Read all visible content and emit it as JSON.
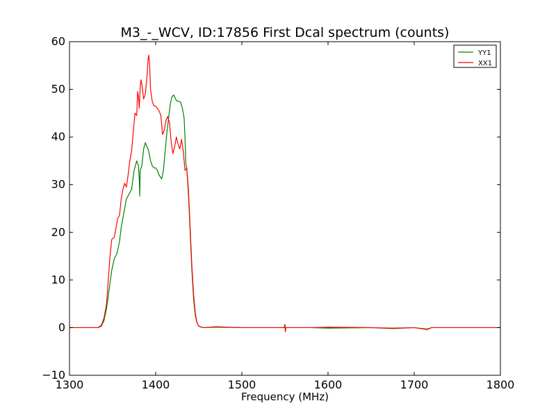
{
  "chart_data": {
    "type": "line",
    "title": "M3_-_WCV, ID:17856 First Dcal spectrum (counts)",
    "xlabel": "Frequency (MHz)",
    "ylabel": "",
    "xlim": [
      1300,
      1800
    ],
    "ylim": [
      -10,
      60
    ],
    "x_ticks": [
      1300,
      1400,
      1500,
      1600,
      1700,
      1800
    ],
    "y_ticks": [
      -10,
      0,
      10,
      20,
      30,
      40,
      50,
      60
    ],
    "x_tick_labels": [
      "1300",
      "1400",
      "1500",
      "1600",
      "1700",
      "1800"
    ],
    "y_tick_labels": [
      "−10",
      "0",
      "10",
      "20",
      "30",
      "40",
      "50",
      "60"
    ],
    "grid": false,
    "legend_position": "top-right",
    "series": [
      {
        "name": "YY1",
        "color": "#008000",
        "points": [
          [
            1300,
            0
          ],
          [
            1320,
            0
          ],
          [
            1333,
            0
          ],
          [
            1337,
            0.3
          ],
          [
            1340,
            1.5
          ],
          [
            1343,
            4
          ],
          [
            1346,
            8
          ],
          [
            1349,
            12
          ],
          [
            1352,
            14.5
          ],
          [
            1355,
            15.5
          ],
          [
            1358,
            18
          ],
          [
            1360,
            21
          ],
          [
            1363,
            24
          ],
          [
            1366,
            27
          ],
          [
            1369,
            28
          ],
          [
            1372,
            29
          ],
          [
            1375,
            33
          ],
          [
            1378,
            35
          ],
          [
            1380,
            34
          ],
          [
            1381,
            31
          ],
          [
            1381.5,
            27.6
          ],
          [
            1382,
            33
          ],
          [
            1384,
            34
          ],
          [
            1386,
            37.5
          ],
          [
            1388,
            38.8
          ],
          [
            1390,
            38
          ],
          [
            1392,
            37
          ],
          [
            1394,
            35
          ],
          [
            1396,
            34
          ],
          [
            1398,
            33.5
          ],
          [
            1400,
            33.5
          ],
          [
            1402,
            33
          ],
          [
            1404,
            32
          ],
          [
            1406,
            31.5
          ],
          [
            1407,
            31.2
          ],
          [
            1409,
            33
          ],
          [
            1411,
            37
          ],
          [
            1413,
            41
          ],
          [
            1415,
            44
          ],
          [
            1417,
            47
          ],
          [
            1419,
            48.5
          ],
          [
            1421,
            48.8
          ],
          [
            1423,
            48
          ],
          [
            1425,
            47.5
          ],
          [
            1427,
            47.5
          ],
          [
            1429,
            47.3
          ],
          [
            1431,
            46
          ],
          [
            1433,
            44
          ],
          [
            1434,
            40
          ],
          [
            1435,
            34.3
          ],
          [
            1436,
            33.5
          ],
          [
            1438,
            28
          ],
          [
            1440,
            20
          ],
          [
            1442,
            12
          ],
          [
            1444,
            6
          ],
          [
            1446,
            2.5
          ],
          [
            1448,
            1
          ],
          [
            1450,
            0.3
          ],
          [
            1455,
            0
          ],
          [
            1470,
            0.1
          ],
          [
            1500,
            0
          ],
          [
            1549,
            0
          ],
          [
            1550,
            0.7
          ],
          [
            1550.5,
            -0.6
          ],
          [
            1551,
            0
          ],
          [
            1580,
            0
          ],
          [
            1600,
            -0.1
          ],
          [
            1650,
            0
          ],
          [
            1675,
            -0.2
          ],
          [
            1700,
            0
          ],
          [
            1715,
            -0.3
          ],
          [
            1720,
            0
          ],
          [
            1800,
            0
          ]
        ]
      },
      {
        "name": "XX1",
        "color": "#ff0000",
        "points": [
          [
            1300,
            0
          ],
          [
            1320,
            0
          ],
          [
            1333,
            0
          ],
          [
            1337,
            0.5
          ],
          [
            1340,
            2
          ],
          [
            1343,
            5
          ],
          [
            1345,
            10
          ],
          [
            1347,
            15
          ],
          [
            1349,
            18.5
          ],
          [
            1352,
            19
          ],
          [
            1354,
            21
          ],
          [
            1356,
            23
          ],
          [
            1358,
            23.5
          ],
          [
            1360,
            27
          ],
          [
            1362,
            29
          ],
          [
            1364,
            30.3
          ],
          [
            1366,
            29.5
          ],
          [
            1368,
            32
          ],
          [
            1370,
            35
          ],
          [
            1372,
            37
          ],
          [
            1374,
            41
          ],
          [
            1376,
            45
          ],
          [
            1378,
            44.5
          ],
          [
            1379,
            49.5
          ],
          [
            1380,
            48.5
          ],
          [
            1381,
            46
          ],
          [
            1382,
            50.5
          ],
          [
            1383,
            52
          ],
          [
            1384,
            51
          ],
          [
            1386,
            48
          ],
          [
            1388,
            49
          ],
          [
            1390,
            53
          ],
          [
            1391,
            56
          ],
          [
            1392,
            57.2
          ],
          [
            1393,
            55
          ],
          [
            1394,
            50
          ],
          [
            1396,
            47.5
          ],
          [
            1398,
            46.5
          ],
          [
            1400,
            46.5
          ],
          [
            1402,
            46
          ],
          [
            1404,
            45.5
          ],
          [
            1406,
            44.5
          ],
          [
            1408,
            40.5
          ],
          [
            1410,
            41.5
          ],
          [
            1412,
            43.5
          ],
          [
            1414,
            44.3
          ],
          [
            1416,
            43
          ],
          [
            1418,
            39
          ],
          [
            1420,
            36.5
          ],
          [
            1422,
            38
          ],
          [
            1424,
            40
          ],
          [
            1426,
            38.5
          ],
          [
            1428,
            37.5
          ],
          [
            1430,
            39.5
          ],
          [
            1432,
            37
          ],
          [
            1434,
            33
          ],
          [
            1436,
            33.5
          ],
          [
            1438,
            29
          ],
          [
            1440,
            21
          ],
          [
            1442,
            13
          ],
          [
            1444,
            7
          ],
          [
            1446,
            3
          ],
          [
            1448,
            1
          ],
          [
            1450,
            0.3
          ],
          [
            1455,
            0
          ],
          [
            1470,
            0.2
          ],
          [
            1500,
            0
          ],
          [
            1549,
            0
          ],
          [
            1550,
            0.3
          ],
          [
            1550.5,
            -0.9
          ],
          [
            1551,
            0
          ],
          [
            1580,
            0
          ],
          [
            1600,
            0.1
          ],
          [
            1650,
            0
          ],
          [
            1675,
            -0.1
          ],
          [
            1700,
            0
          ],
          [
            1715,
            -0.4
          ],
          [
            1720,
            0
          ],
          [
            1800,
            0
          ]
        ]
      }
    ]
  }
}
